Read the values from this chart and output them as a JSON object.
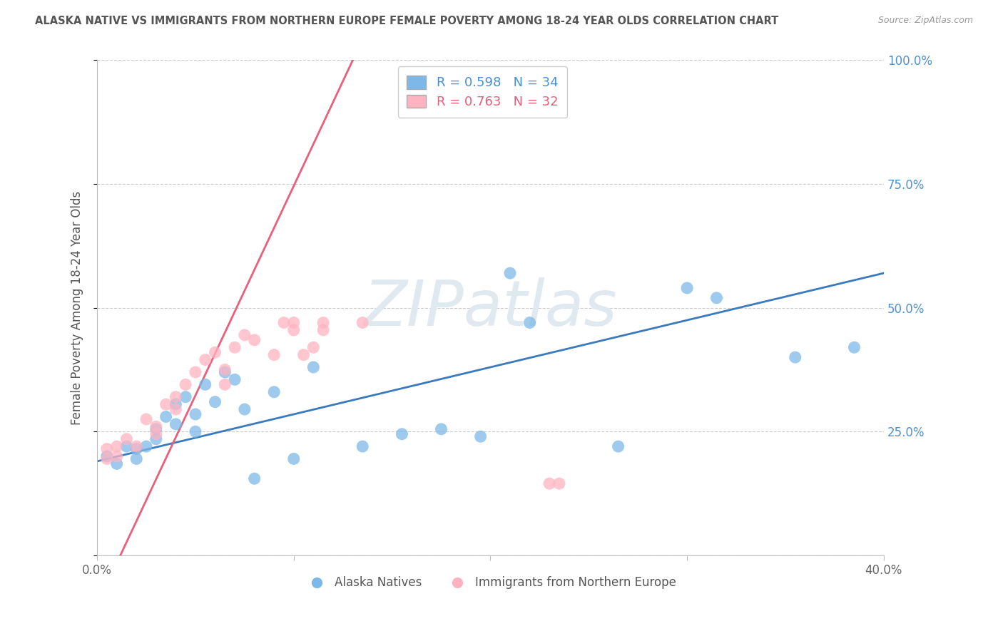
{
  "title": "ALASKA NATIVE VS IMMIGRANTS FROM NORTHERN EUROPE FEMALE POVERTY AMONG 18-24 YEAR OLDS CORRELATION CHART",
  "source": "Source: ZipAtlas.com",
  "ylabel": "Female Poverty Among 18-24 Year Olds",
  "xlim": [
    0.0,
    0.4
  ],
  "ylim": [
    0.0,
    1.0
  ],
  "xticks": [
    0.0,
    0.1,
    0.2,
    0.3,
    0.4
  ],
  "xticklabels": [
    "0.0%",
    "",
    "",
    "",
    "40.0%"
  ],
  "yticks": [
    0.0,
    0.25,
    0.5,
    0.75,
    1.0
  ],
  "yticklabels": [
    "",
    "25.0%",
    "50.0%",
    "75.0%",
    "100.0%"
  ],
  "blue_R": 0.598,
  "blue_N": 34,
  "pink_R": 0.763,
  "pink_N": 32,
  "blue_color": "#7cb9e8",
  "pink_color": "#ffb3c1",
  "blue_line_color": "#3a7abf",
  "pink_line_color": "#e8607a",
  "blue_label": "Alaska Natives",
  "pink_label": "Immigrants from Northern Europe",
  "watermark_text": "ZIPatlas",
  "background_color": "#ffffff",
  "blue_x": [
    0.005,
    0.01,
    0.015,
    0.02,
    0.02,
    0.025,
    0.03,
    0.03,
    0.035,
    0.04,
    0.04,
    0.045,
    0.05,
    0.05,
    0.055,
    0.06,
    0.065,
    0.07,
    0.075,
    0.08,
    0.09,
    0.1,
    0.11,
    0.135,
    0.155,
    0.175,
    0.195,
    0.21,
    0.22,
    0.265,
    0.3,
    0.315,
    0.355,
    0.385
  ],
  "blue_y": [
    0.2,
    0.185,
    0.22,
    0.195,
    0.215,
    0.22,
    0.235,
    0.255,
    0.28,
    0.305,
    0.265,
    0.32,
    0.285,
    0.25,
    0.345,
    0.31,
    0.37,
    0.355,
    0.295,
    0.155,
    0.33,
    0.195,
    0.38,
    0.22,
    0.245,
    0.255,
    0.24,
    0.57,
    0.47,
    0.22,
    0.54,
    0.52,
    0.4,
    0.42
  ],
  "pink_x": [
    0.005,
    0.005,
    0.01,
    0.01,
    0.015,
    0.02,
    0.025,
    0.03,
    0.03,
    0.035,
    0.04,
    0.04,
    0.045,
    0.05,
    0.055,
    0.06,
    0.065,
    0.065,
    0.07,
    0.075,
    0.08,
    0.09,
    0.095,
    0.1,
    0.105,
    0.1,
    0.11,
    0.115,
    0.115,
    0.135,
    0.23,
    0.235
  ],
  "pink_y": [
    0.215,
    0.195,
    0.22,
    0.2,
    0.235,
    0.22,
    0.275,
    0.26,
    0.245,
    0.305,
    0.32,
    0.295,
    0.345,
    0.37,
    0.395,
    0.41,
    0.345,
    0.375,
    0.42,
    0.445,
    0.435,
    0.405,
    0.47,
    0.455,
    0.405,
    0.47,
    0.42,
    0.455,
    0.47,
    0.47,
    0.145,
    0.145
  ]
}
